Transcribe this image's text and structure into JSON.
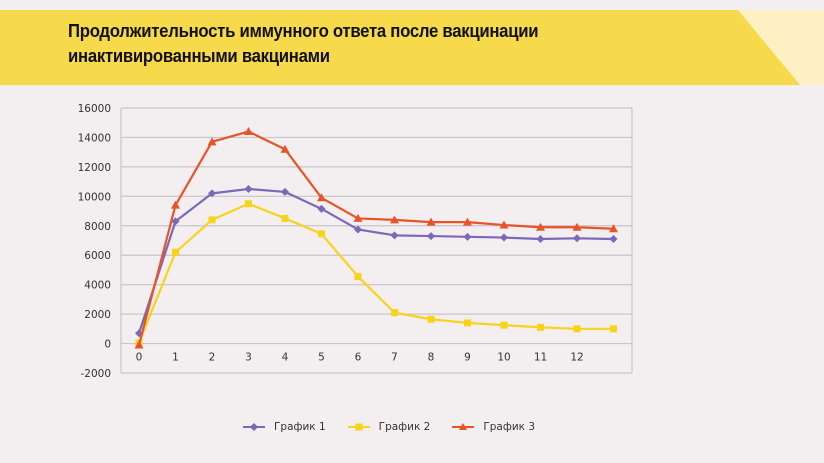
{
  "header": {
    "title_line1": "Продолжительность иммунного ответа после вакцинации",
    "title_line2": "инактивированными вакцинами",
    "banner_color": "#f7d94c",
    "banner_light_color": "#fdf1c4"
  },
  "chart_data": {
    "type": "line",
    "title": "Продолжительность иммунного ответа после вакцинации инактивированными вакцинами",
    "xlabel": "",
    "ylabel": "",
    "x": [
      0,
      1,
      2,
      3,
      4,
      5,
      6,
      7,
      8,
      9,
      10,
      11,
      12,
      13
    ],
    "x_tick_labels": [
      "0",
      "1",
      "2",
      "3",
      "4",
      "5",
      "6",
      "7",
      "8",
      "9",
      "10",
      "11",
      "12",
      ""
    ],
    "y_ticks": [
      -2000,
      0,
      2000,
      4000,
      6000,
      8000,
      10000,
      12000,
      14000,
      16000
    ],
    "ylim": [
      -2000,
      16000
    ],
    "grid": true,
    "legend_position": "bottom",
    "series": [
      {
        "name": "График 1",
        "color": "#7b68b8",
        "marker": "diamond",
        "values": [
          700,
          8300,
          10200,
          10500,
          10300,
          9150,
          7750,
          7350,
          7300,
          7250,
          7200,
          7100,
          7150,
          7100
        ]
      },
      {
        "name": "График 2",
        "color": "#f9d21b",
        "marker": "square",
        "values": [
          50,
          6200,
          8400,
          9500,
          8500,
          7450,
          4550,
          2100,
          1650,
          1400,
          1250,
          1100,
          1000,
          1000
        ]
      },
      {
        "name": "График 3",
        "color": "#e8532a",
        "marker": "triangle",
        "values": [
          -100,
          9400,
          13700,
          14400,
          13200,
          9900,
          8500,
          8400,
          8250,
          8250,
          8050,
          7900,
          7900,
          7800
        ]
      }
    ]
  },
  "legend": {
    "items": [
      {
        "label": "График 1",
        "color": "#7b68b8"
      },
      {
        "label": "График 2",
        "color": "#f9d21b"
      },
      {
        "label": "График 3",
        "color": "#e8532a"
      }
    ]
  }
}
